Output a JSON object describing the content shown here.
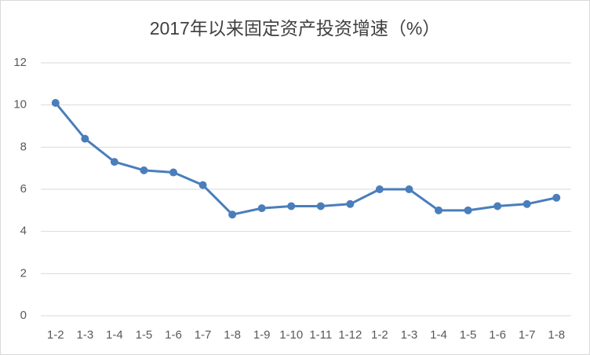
{
  "chart_data": {
    "type": "line",
    "title": "2017年以来固定资产投资增速（%）",
    "categories": [
      "1-2",
      "1-3",
      "1-4",
      "1-5",
      "1-6",
      "1-7",
      "1-8",
      "1-9",
      "1-10",
      "1-11",
      "1-12",
      "1-2",
      "1-3",
      "1-4",
      "1-5",
      "1-6",
      "1-7",
      "1-8"
    ],
    "values": [
      10.1,
      8.4,
      7.3,
      6.9,
      6.8,
      6.2,
      4.8,
      5.1,
      5.2,
      5.2,
      5.3,
      6.0,
      6.0,
      5.0,
      5.0,
      5.2,
      5.3,
      5.6
    ],
    "color": "#4a7ebb",
    "ylim": [
      0,
      12
    ],
    "yticks": [
      0,
      2,
      4,
      6,
      8,
      10,
      12
    ],
    "grid": true
  }
}
